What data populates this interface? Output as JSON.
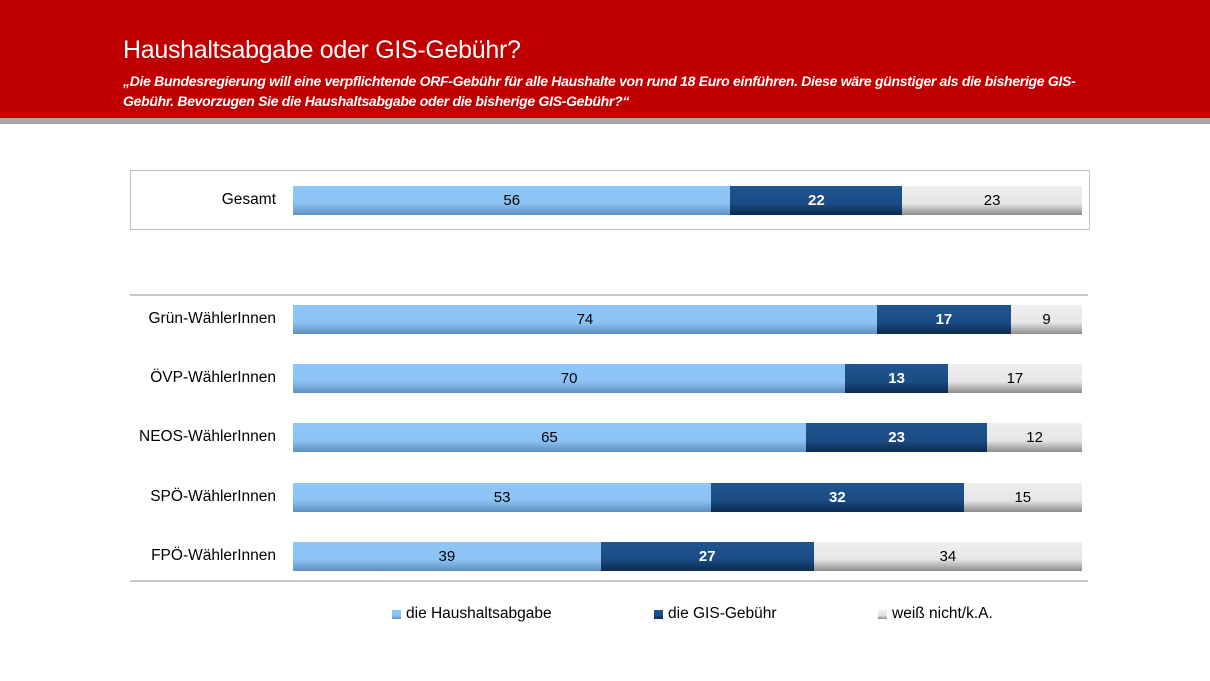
{
  "header": {
    "title": "Haushaltsabgabe oder GIS-Gebühr?",
    "subtitle": "„Die Bundesregierung will eine verpflichtende ORF-Gebühr für alle Haushalte von rund 18 Euro einführen. Diese wäre günstiger als die bisherige GIS-Gebühr. Bevorzugen Sie die Haushaltsabgabe oder die bisherige GIS-Gebühr?“"
  },
  "chart_data": {
    "type": "bar",
    "orientation": "horizontal",
    "stacked": true,
    "categories": [
      "Gesamt",
      "Grün-WählerInnen",
      "ÖVP-WählerInnen",
      "NEOS-WählerInnen",
      "SPÖ-WählerInnen",
      "FPÖ-WählerInnen"
    ],
    "series": [
      {
        "name": "die Haushaltsabgabe",
        "color": "#8cc3f4",
        "values": [
          56,
          74,
          70,
          65,
          53,
          39
        ]
      },
      {
        "name": "die GIS-Gebühr",
        "color": "#1b4c84",
        "values": [
          22,
          17,
          13,
          23,
          32,
          27
        ]
      },
      {
        "name": "weiß nicht/k.A.",
        "color": "#e6e6e6",
        "values": [
          23,
          9,
          17,
          12,
          15,
          34
        ]
      }
    ],
    "legend": "bottom",
    "grid": false
  }
}
